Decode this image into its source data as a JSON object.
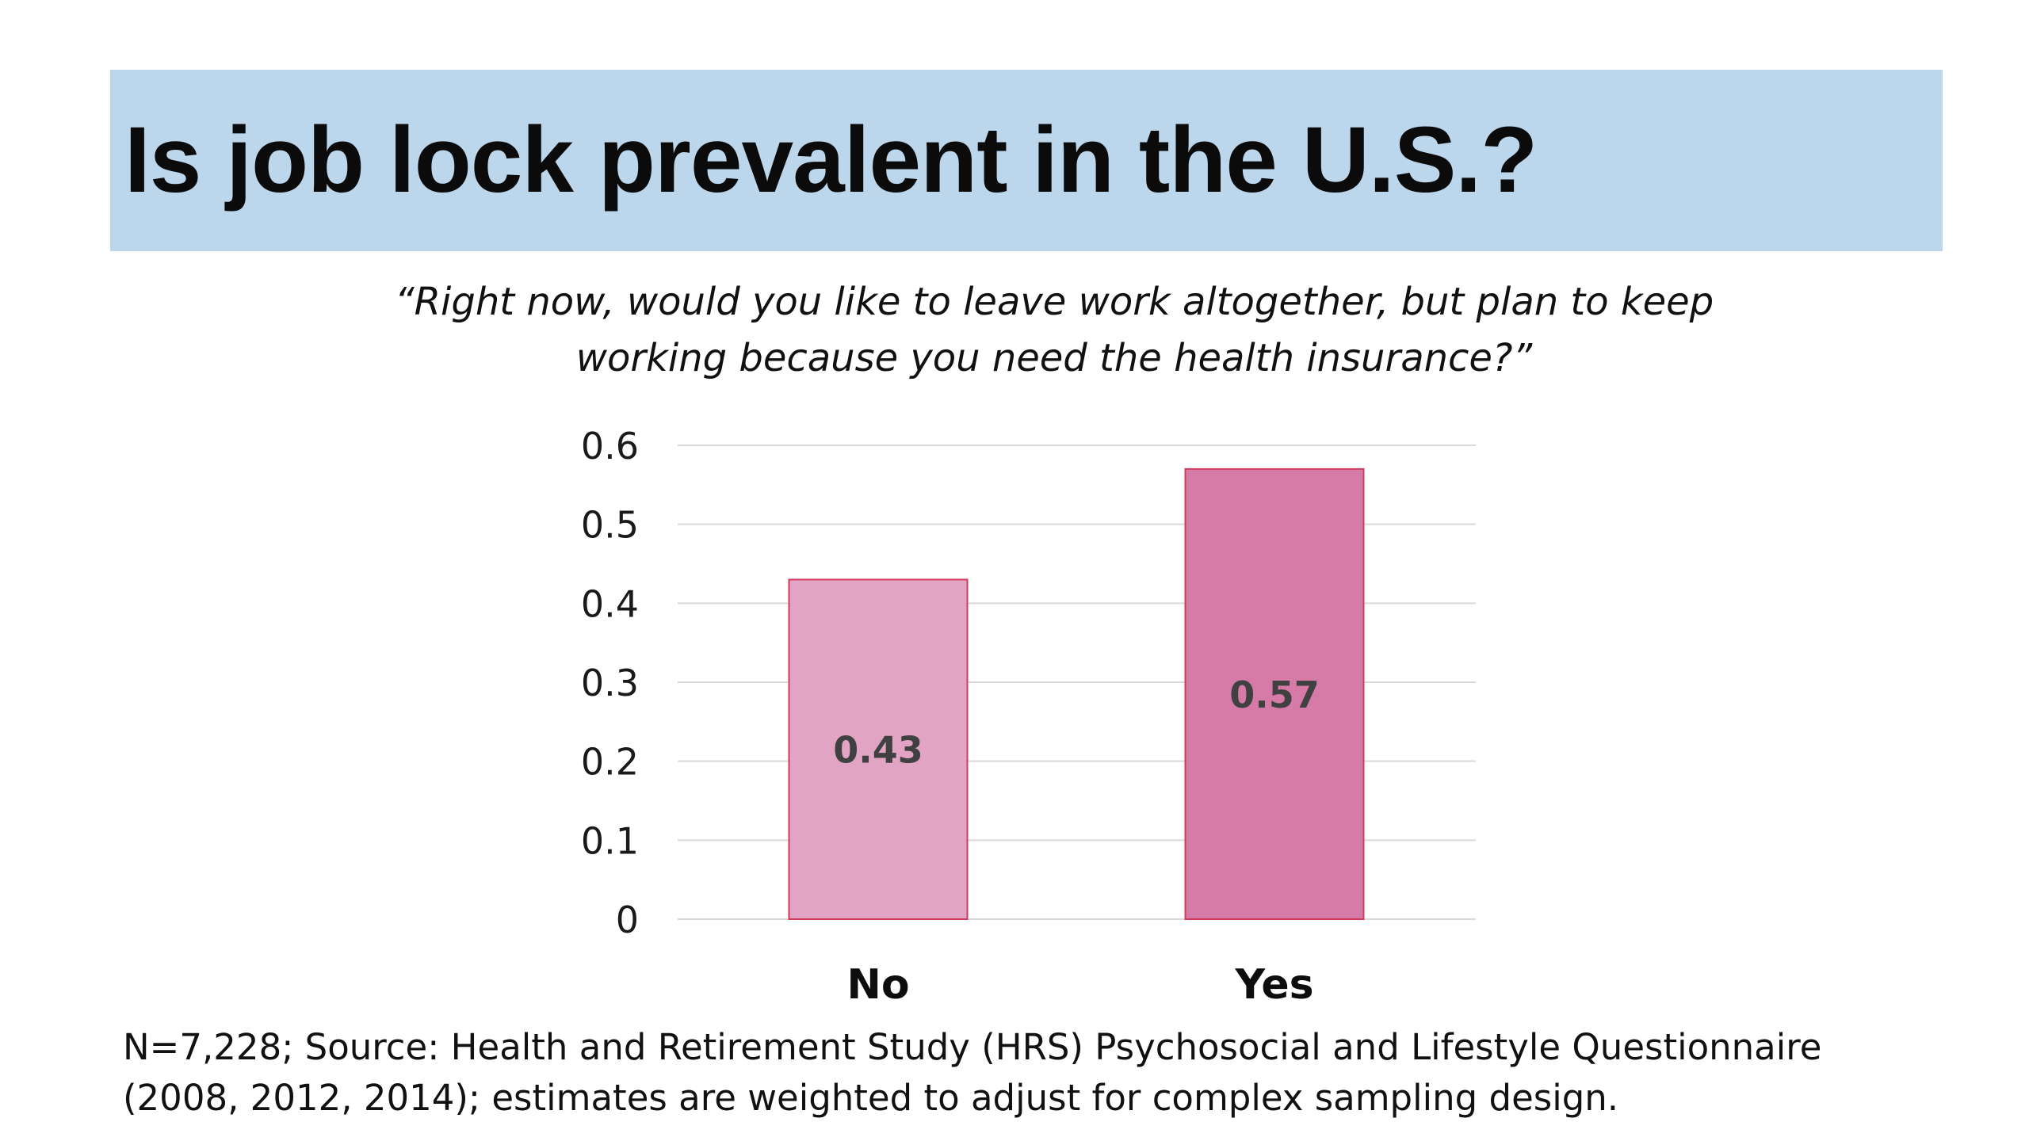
{
  "slide": {
    "title": "Is job lock prevalent in the U.S.?",
    "question_line1": "“Right now, would you like to leave work altogether, but plan to keep",
    "question_line2": "working because you need the health insurance?”",
    "footnote_line1": "N=7,228; Source: Health and Retirement Study (HRS) Psychosocial and Lifestyle Questionnaire",
    "footnote_line2": "(2008, 2012, 2014); estimates are weighted to adjust for complex sampling design."
  },
  "colors": {
    "title_banner": "#bcd6ec",
    "bar_no": "#e2a4c4",
    "bar_yes": "#d67ba8",
    "bar_border": "#d23c5a",
    "gridline": "#d9d9d9",
    "data_label": "#404040"
  },
  "chart_data": {
    "type": "bar",
    "categories": [
      "No",
      "Yes"
    ],
    "values": [
      0.43,
      0.57
    ],
    "data_labels": [
      "0.43",
      "0.57"
    ],
    "yticks": [
      "0",
      "0.1",
      "0.2",
      "0.3",
      "0.4",
      "0.5",
      "0.6"
    ],
    "ylim": [
      0,
      0.6
    ],
    "grid": true,
    "legend": false,
    "title": "",
    "xlabel": "",
    "ylabel": ""
  }
}
